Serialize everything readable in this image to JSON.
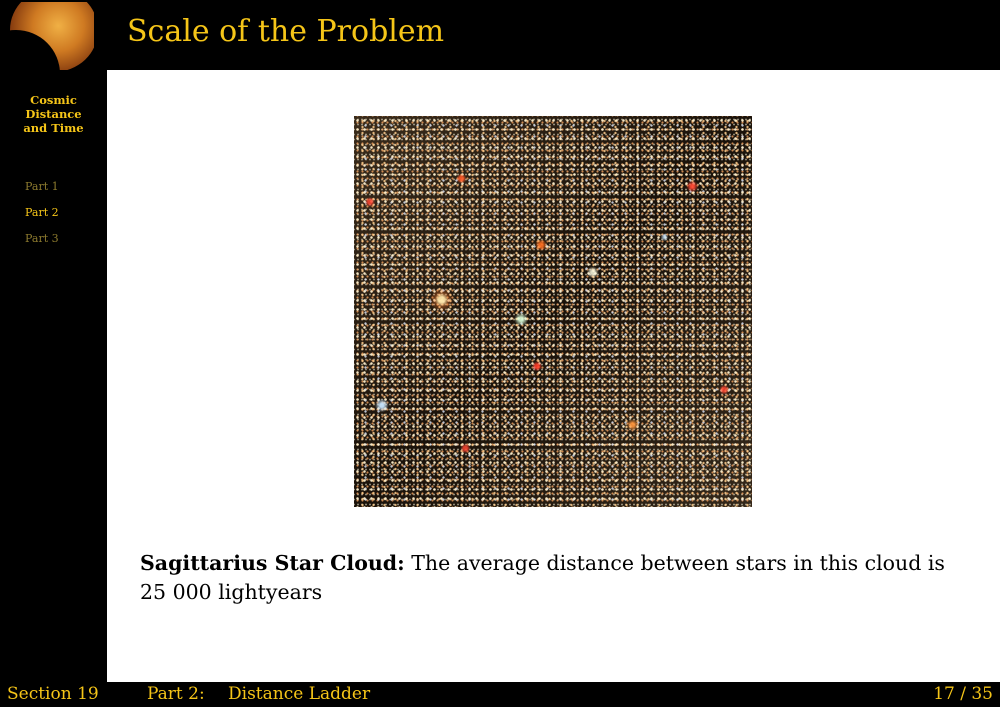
{
  "header": {
    "title": "Scale of the Problem"
  },
  "sidebar": {
    "title_lines": [
      "Cosmic",
      "Distance",
      "and Time"
    ],
    "items": [
      {
        "label": "Part 1"
      },
      {
        "label": "Part 2"
      },
      {
        "label": "Part 3"
      }
    ],
    "active_index": 1
  },
  "content": {
    "image_subject": "Sagittarius Star Cloud star field photo",
    "caption_bold": "Sagittarius Star Cloud:",
    "caption_text": "The average distance between stars in this cloud is",
    "caption_value": "25 000 lightyears"
  },
  "footer": {
    "section": "Section 19",
    "part": "Part 2:",
    "part_title": "Distance Ladder",
    "page": "17 / 35"
  },
  "colors": {
    "accent": "#f5c518",
    "inactive_nav": "#8c7a2e",
    "background": "#000000",
    "content_bg": "#ffffff"
  }
}
